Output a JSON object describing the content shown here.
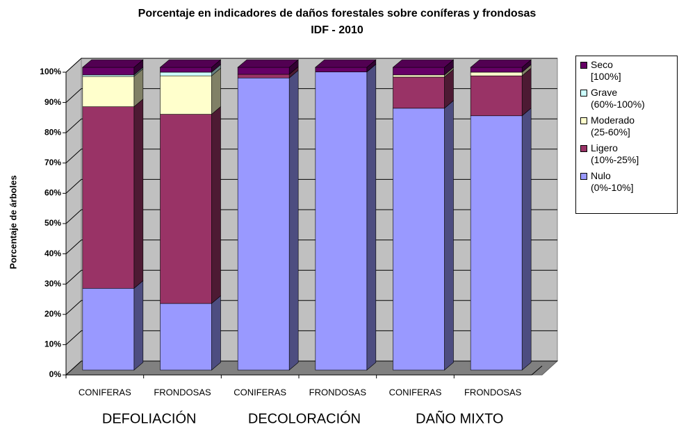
{
  "chart_data": {
    "type": "stacked_bar_3d",
    "title": "Porcentaje en indicadores de daños forestales sobre coníferas y frondosas",
    "subtitle": "IDF - 2010",
    "y_label": "Porcentaje de árboles",
    "categories": [
      "CONIFERAS",
      "FRONDOSAS",
      "CONIFERAS",
      "FRONDOSAS",
      "CONIFERAS",
      "FRONDOSAS"
    ],
    "groups": [
      "DEFOLIACIÓN",
      "DECOLORACIÓN",
      "DAÑO MIXTO"
    ],
    "series": [
      {
        "name": "Nulo\n(0%-10%]",
        "color": "#9999ff",
        "values": [
          27,
          22,
          96.5,
          98.5,
          86.5,
          84
        ]
      },
      {
        "name": "Ligero\n(10%-25%]",
        "color": "#993366",
        "values": [
          60,
          62.5,
          1.2,
          0,
          10.3,
          13.2
        ]
      },
      {
        "name": "Moderado\n(25-60%]",
        "color": "#ffffcc",
        "values": [
          10,
          12.7,
          0,
          0,
          0.7,
          1.2
        ]
      },
      {
        "name": "Grave\n(60%-100%)",
        "color": "#ccffff",
        "values": [
          0.5,
          1.2,
          0,
          0,
          0,
          0
        ]
      },
      {
        "name": "Seco\n[100%]",
        "color": "#660066",
        "values": [
          2.5,
          1.6,
          2.3,
          1.5,
          2.5,
          1.6
        ]
      }
    ],
    "ylim": [
      0,
      100
    ],
    "yticks": [
      {
        "value": 0,
        "label": "0%"
      },
      {
        "value": 10,
        "label": "10%"
      },
      {
        "value": 20,
        "label": "20%"
      },
      {
        "value": 30,
        "label": "30%"
      },
      {
        "value": 40,
        "label": "40%"
      },
      {
        "value": 50,
        "label": "50%"
      },
      {
        "value": 60,
        "label": "60%"
      },
      {
        "value": 70,
        "label": "70%"
      },
      {
        "value": 80,
        "label": "80%"
      },
      {
        "value": 90,
        "label": "90%"
      },
      {
        "value": 100,
        "label": "100%"
      }
    ],
    "grid": true
  }
}
